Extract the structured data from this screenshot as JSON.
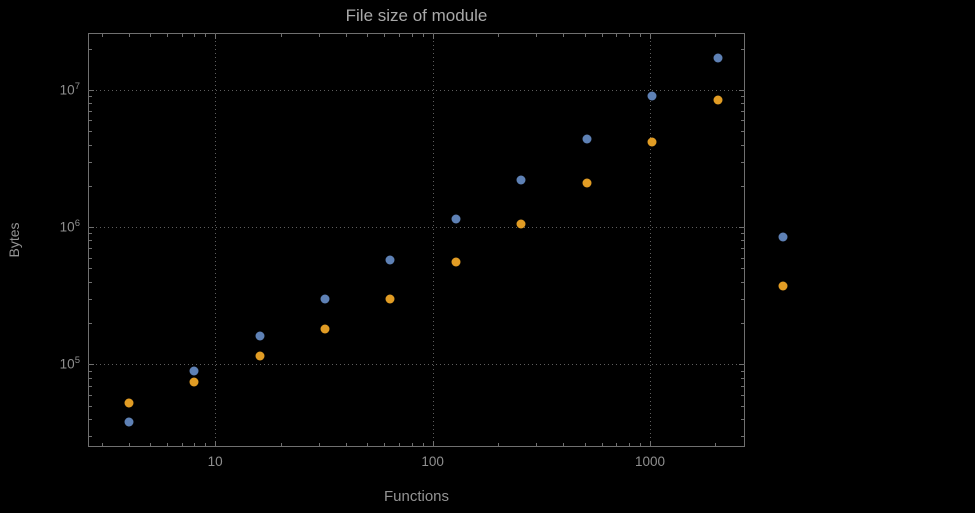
{
  "chart_data": {
    "type": "scatter",
    "title": "File size of module",
    "xlabel": "Functions",
    "ylabel": "Bytes",
    "x_scale": "log",
    "y_scale": "log",
    "xlim": [
      2.6,
      2735
    ],
    "ylim": [
      25000,
      26000000
    ],
    "x_major_ticks": [
      10,
      100,
      1000
    ],
    "y_major_ticks": [
      100000,
      1000000,
      10000000
    ],
    "grid": "dotted gridlines at decade positions, framed plot with mirrored ticks",
    "legend": "none",
    "x": [
      4,
      8,
      16,
      32,
      64,
      128,
      256,
      512,
      1024,
      2048,
      4096
    ],
    "series": [
      {
        "name": "series-1-blue",
        "color": "#5e81b5",
        "values": [
          38000,
          90000,
          160000,
          300000,
          580000,
          1150000,
          2200000,
          4400000,
          9000000,
          17000000,
          850000
        ]
      },
      {
        "name": "series-2-orange",
        "color": "#e19c24",
        "values": [
          52000,
          75000,
          115000,
          180000,
          300000,
          560000,
          1050000,
          2100000,
          4200000,
          8500000,
          370000
        ]
      }
    ]
  }
}
